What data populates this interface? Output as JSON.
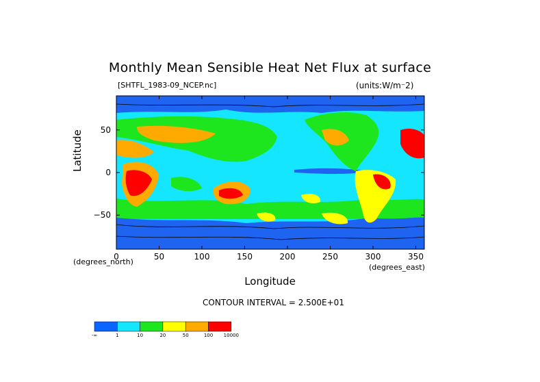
{
  "chart_data": {
    "type": "heatmap",
    "title": "Monthly Mean Sensible Heat Net Flux at surface",
    "file_label": "[SHTFL_1983-09_NCEP.nc]",
    "units_label": "(units:W/m^2)",
    "xlabel": "Longitude",
    "ylabel": "Latitude",
    "x_unit_label": "(degrees_east)",
    "y_unit_label": "(degrees_north)",
    "xlim": [
      0,
      360
    ],
    "ylim": [
      -90,
      90
    ],
    "x_ticks": [
      "0",
      "50",
      "100",
      "150",
      "200",
      "250",
      "300",
      "350"
    ],
    "x_tick_values": [
      0,
      50,
      100,
      150,
      200,
      250,
      300,
      350
    ],
    "y_ticks": [
      "50",
      "0",
      "-50"
    ],
    "y_tick_values": [
      50,
      0,
      -50
    ],
    "contour_interval": "CONTOUR INTERVAL = 2.500E+01",
    "colorbar": {
      "labels": [
        "-∞",
        "1",
        "10",
        "20",
        "50",
        "100",
        "10000"
      ],
      "colors": [
        "#0a64ff",
        "#14e6ff",
        "#1ee61e",
        "#ffff00",
        "#ffaa00",
        "#ff0000"
      ]
    },
    "colors": {
      "ocean_background": "#14e6ff",
      "cold_band": "#1e64f0",
      "land_dark": "#000000"
    }
  }
}
